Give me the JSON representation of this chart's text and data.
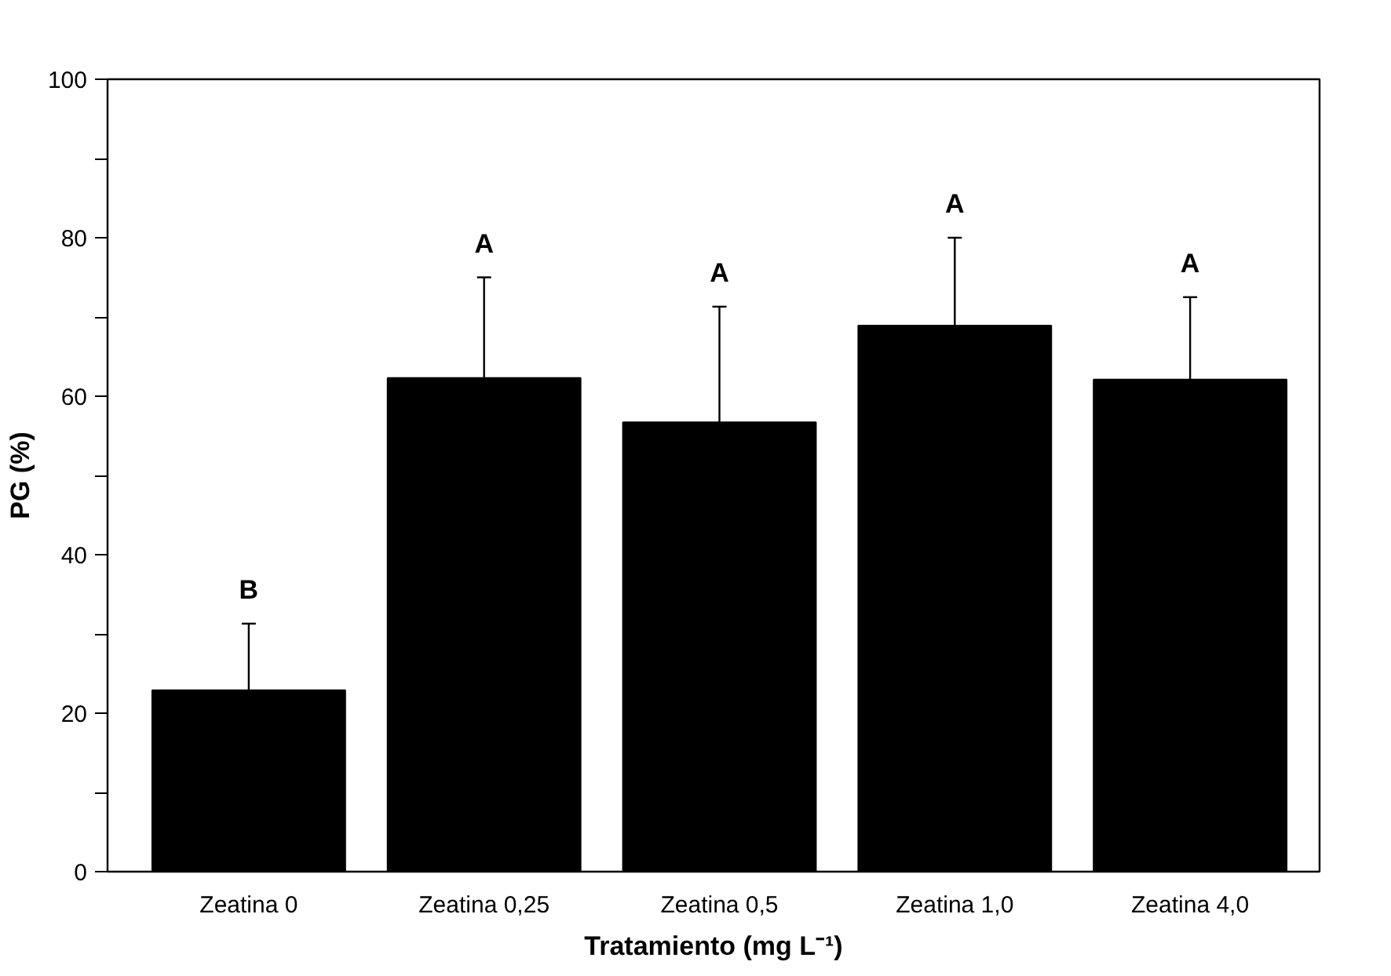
{
  "chart_data": {
    "type": "bar",
    "categories": [
      "Zeatina 0",
      "Zeatina 0,25",
      "Zeatina 0,5",
      "Zeatina 1,0",
      "Zeatina 4,0"
    ],
    "values": [
      22.9,
      62.3,
      56.7,
      68.9,
      62.1
    ],
    "errors": [
      [
        22.9,
        31.3
      ],
      [
        62.3,
        75.0
      ],
      [
        56.7,
        71.3
      ],
      [
        68.9,
        80.0
      ],
      [
        62.1,
        72.5
      ]
    ],
    "color": "#000000",
    "xlabel": "Tratamiento (mg L⁻¹)",
    "ylabel": "PG (%)",
    "ylim": [
      0,
      100
    ],
    "yticks": [
      0,
      {
        "value": 10,
        "label": null
      },
      20,
      {
        "value": 30,
        "label": null
      },
      40,
      {
        "value": 50,
        "label": null
      },
      60,
      {
        "value": 70,
        "label": null
      },
      80,
      {
        "value": 90,
        "label": null
      },
      100
    ],
    "annotations": [
      "B",
      "A",
      "A",
      "A",
      "A"
    ],
    "grid": false
  }
}
